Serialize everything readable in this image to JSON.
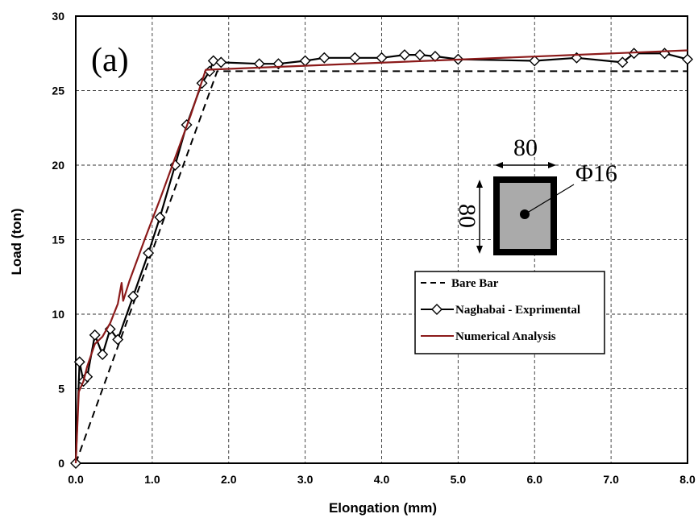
{
  "chart_data": {
    "type": "line",
    "panel_label": "(a)",
    "xlabel": "Elongation (mm)",
    "ylabel": "Load (ton)",
    "xlim": [
      0,
      8
    ],
    "ylim": [
      0,
      30
    ],
    "x_ticks": [
      "0.0",
      "1.0",
      "2.0",
      "3.0",
      "4.0",
      "5.0",
      "6.0",
      "7.0",
      "8.0"
    ],
    "y_ticks": [
      "0",
      "5",
      "10",
      "15",
      "20",
      "25",
      "30"
    ],
    "grid": true,
    "legend_position": "lower-right",
    "series": [
      {
        "name": "Bare Bar",
        "style": "dashed",
        "color": "#000000",
        "x": [
          0,
          1.85,
          8.0
        ],
        "y": [
          0,
          26.3,
          26.3
        ]
      },
      {
        "name": "Naghabai - Exprimental",
        "style": "solid-diamond-markers",
        "color": "#000000",
        "x": [
          0,
          0.05,
          0.1,
          0.15,
          0.25,
          0.35,
          0.45,
          0.55,
          0.75,
          0.95,
          1.1,
          1.3,
          1.45,
          1.65,
          1.75,
          1.8,
          1.9,
          2.4,
          2.65,
          3.0,
          3.25,
          3.65,
          4.0,
          4.3,
          4.5,
          4.7,
          5.0,
          6.0,
          6.55,
          7.15,
          7.3,
          7.7,
          8.0
        ],
        "y": [
          0,
          6.8,
          5.5,
          5.8,
          8.6,
          7.3,
          9.0,
          8.3,
          11.2,
          14.1,
          16.5,
          20.0,
          22.7,
          25.5,
          26.3,
          27.0,
          26.9,
          26.8,
          26.8,
          27.0,
          27.2,
          27.2,
          27.2,
          27.4,
          27.4,
          27.3,
          27.1,
          27.0,
          27.2,
          26.9,
          27.5,
          27.5,
          27.1
        ]
      },
      {
        "name": "Numerical Analysis",
        "style": "solid",
        "color": "#8b1a1a",
        "x": [
          0,
          0.04,
          0.1,
          0.15,
          0.25,
          0.35,
          0.45,
          0.55,
          0.6,
          0.62,
          0.7,
          0.9,
          1.1,
          1.3,
          1.5,
          1.7,
          8.0
        ],
        "y": [
          0,
          4.8,
          5.5,
          6.5,
          8.0,
          8.5,
          9.4,
          10.7,
          12.1,
          10.9,
          12.2,
          15.0,
          17.7,
          20.5,
          23.3,
          26.4,
          27.7
        ]
      }
    ],
    "annotations": {
      "width_label": "80",
      "height_label": "80",
      "bar_label": "Φ16"
    }
  }
}
